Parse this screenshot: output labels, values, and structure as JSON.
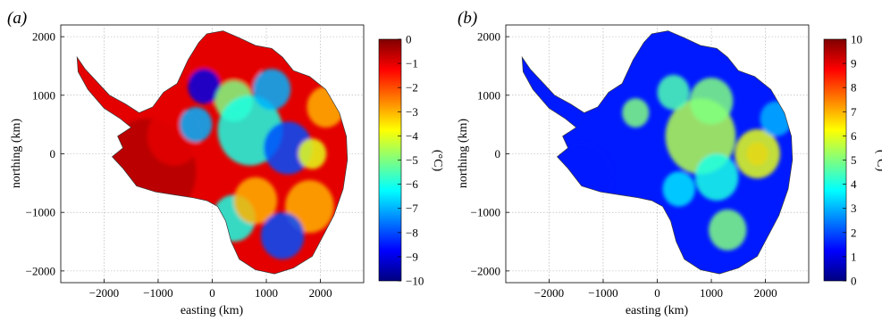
{
  "chart_data": [
    {
      "type": "heatmap",
      "panel_label": "(a)",
      "xlabel": "easting (km)",
      "ylabel": "northing (km)",
      "xlim": [
        -2800,
        2800
      ],
      "ylim": [
        -2200,
        2200
      ],
      "xticks": [
        -2000,
        -1000,
        0,
        1000,
        2000
      ],
      "xtick_labels": [
        "−2000",
        "−1000",
        "0",
        "1000",
        "2000"
      ],
      "yticks": [
        -2000,
        -1000,
        0,
        1000,
        2000
      ],
      "ytick_labels": [
        "−2000",
        "−1000",
        "0",
        "1000",
        "2000"
      ],
      "grid": true,
      "colorbar": {
        "label": "(°C)",
        "min": -10,
        "max": 0,
        "ticks": [
          0,
          -1,
          -2,
          -3,
          -4,
          -5,
          -6,
          -7,
          -8,
          -9,
          -10
        ],
        "tick_labels": [
          "0",
          "−1",
          "−2",
          "−3",
          "−4",
          "−5",
          "−6",
          "−7",
          "−8",
          "−9",
          "−10"
        ],
        "colormap": "jet"
      },
      "field_background": -1,
      "hotspots": [
        {
          "x": -1200,
          "y": -300,
          "r": 900,
          "value": -0.5
        },
        {
          "x": -700,
          "y": 300,
          "r": 500,
          "value": -1
        },
        {
          "x": 200,
          "y": 1500,
          "r": 700,
          "value": -1
        },
        {
          "x": -150,
          "y": 1150,
          "r": 300,
          "value": -9
        },
        {
          "x": 400,
          "y": 900,
          "r": 350,
          "value": -5
        },
        {
          "x": 700,
          "y": 400,
          "r": 600,
          "value": -6
        },
        {
          "x": 1400,
          "y": 100,
          "r": 450,
          "value": -8
        },
        {
          "x": 1850,
          "y": 0,
          "r": 260,
          "value": -4
        },
        {
          "x": 1100,
          "y": 1100,
          "r": 350,
          "value": -7
        },
        {
          "x": 400,
          "y": -1100,
          "r": 400,
          "value": -6
        },
        {
          "x": 800,
          "y": -800,
          "r": 400,
          "value": -3
        },
        {
          "x": 1800,
          "y": -900,
          "r": 450,
          "value": -3
        },
        {
          "x": 1300,
          "y": -1400,
          "r": 400,
          "value": -8
        },
        {
          "x": 2100,
          "y": 800,
          "r": 350,
          "value": -3
        },
        {
          "x": -300,
          "y": 500,
          "r": 300,
          "value": -7
        }
      ]
    },
    {
      "type": "heatmap",
      "panel_label": "(b)",
      "xlabel": "easting (km)",
      "ylabel": "northing (km)",
      "xlim": [
        -2800,
        2800
      ],
      "ylim": [
        -2200,
        2200
      ],
      "xticks": [
        -2000,
        -1000,
        0,
        1000,
        2000
      ],
      "xtick_labels": [
        "−2000",
        "−1000",
        "0",
        "1000",
        "2000"
      ],
      "yticks": [
        -2000,
        -1000,
        0,
        1000,
        2000
      ],
      "ytick_labels": [
        "−2000",
        "−1000",
        "0",
        "1000",
        "2000"
      ],
      "grid": true,
      "colorbar": {
        "label": "(°C)",
        "min": 0,
        "max": 10,
        "ticks": [
          10,
          9,
          8,
          7,
          6,
          5,
          4,
          3,
          2,
          1,
          0
        ],
        "tick_labels": [
          "10",
          "9",
          "8",
          "7",
          "6",
          "5",
          "4",
          "3",
          "2",
          "1",
          "0"
        ],
        "colormap": "jet"
      },
      "field_background": 1.5,
      "hotspots": [
        {
          "x": 1850,
          "y": 0,
          "r": 200,
          "value": 9
        },
        {
          "x": 1850,
          "y": 0,
          "r": 420,
          "value": 6
        },
        {
          "x": 800,
          "y": 300,
          "r": 650,
          "value": 5.5
        },
        {
          "x": 1000,
          "y": 900,
          "r": 400,
          "value": 5
        },
        {
          "x": 300,
          "y": 1050,
          "r": 300,
          "value": 4.5
        },
        {
          "x": 1300,
          "y": -1300,
          "r": 350,
          "value": 5
        },
        {
          "x": 1100,
          "y": -400,
          "r": 400,
          "value": 4
        },
        {
          "x": 400,
          "y": -600,
          "r": 300,
          "value": 3.5
        },
        {
          "x": -400,
          "y": 700,
          "r": 250,
          "value": 5
        },
        {
          "x": -1400,
          "y": -400,
          "r": 600,
          "value": 1.5
        },
        {
          "x": 2200,
          "y": 600,
          "r": 300,
          "value": 3
        }
      ]
    }
  ]
}
